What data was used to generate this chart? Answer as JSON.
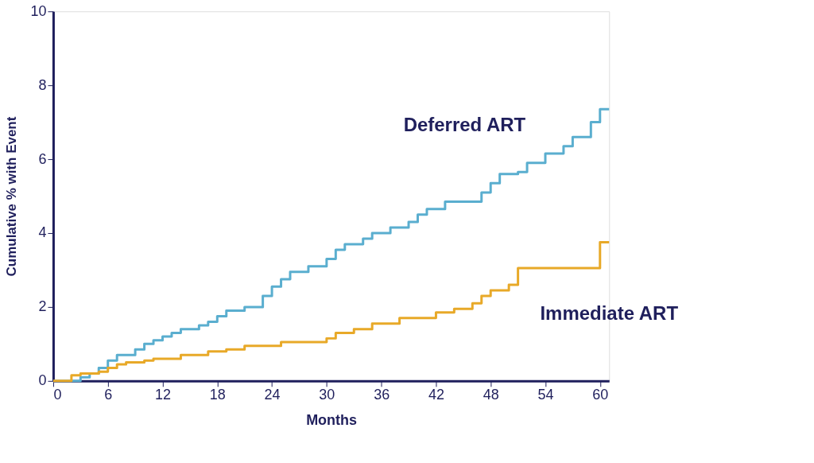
{
  "chart_data": {
    "type": "step",
    "xlabel": "Months",
    "ylabel": "Cumulative % with Event",
    "xlim": [
      0,
      61
    ],
    "xticks": [
      0,
      6,
      12,
      18,
      24,
      30,
      36,
      42,
      48,
      54,
      60
    ],
    "ylim": [
      0,
      10
    ],
    "yticks": [
      0,
      2,
      4,
      6,
      8,
      10
    ],
    "grid": false,
    "legend": false,
    "line_style": "solid",
    "marker": "none",
    "series": [
      {
        "name": "Deferred ART",
        "color": "#5aaecf",
        "x": [
          0,
          3,
          4,
          5,
          6,
          7,
          9,
          10,
          11,
          12,
          13,
          14,
          16,
          17,
          18,
          19,
          21,
          23,
          24,
          25,
          26,
          28,
          30,
          31,
          32,
          34,
          35,
          37,
          39,
          40,
          41,
          43,
          47,
          48,
          49,
          51,
          52,
          54,
          56,
          57,
          59,
          60,
          61
        ],
        "values": [
          0,
          0.1,
          0.2,
          0.35,
          0.55,
          0.7,
          0.85,
          1.0,
          1.1,
          1.2,
          1.3,
          1.4,
          1.5,
          1.6,
          1.75,
          1.9,
          2.0,
          2.3,
          2.55,
          2.75,
          2.95,
          3.1,
          3.3,
          3.55,
          3.7,
          3.85,
          4.0,
          4.15,
          4.3,
          4.5,
          4.65,
          4.85,
          5.1,
          5.35,
          5.6,
          5.65,
          5.9,
          6.15,
          6.35,
          6.6,
          7.0,
          7.35,
          7.35
        ]
      },
      {
        "name": "Immediate ART",
        "color": "#e8a928",
        "x": [
          0,
          2,
          3,
          5,
          6,
          7,
          8,
          10,
          11,
          14,
          17,
          19,
          21,
          25,
          30,
          31,
          33,
          35,
          38,
          42,
          44,
          46,
          47,
          48,
          50,
          51,
          60,
          61
        ],
        "values": [
          0,
          0.15,
          0.2,
          0.25,
          0.35,
          0.45,
          0.5,
          0.55,
          0.6,
          0.7,
          0.8,
          0.85,
          0.95,
          1.05,
          1.15,
          1.3,
          1.4,
          1.55,
          1.7,
          1.85,
          1.95,
          2.1,
          2.3,
          2.45,
          2.6,
          3.05,
          3.75,
          3.75
        ]
      }
    ]
  }
}
